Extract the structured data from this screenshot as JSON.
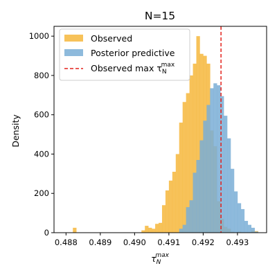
{
  "chart_data": {
    "type": "histogram",
    "title": "N=15",
    "xlabel": "τ",
    "xlabel_sub": "N",
    "xlabel_sup": "max",
    "ylabel": "Density",
    "xlim": [
      0.48765,
      0.49385
    ],
    "ylim": [
      0,
      1050
    ],
    "xticks": [
      0.488,
      0.489,
      0.49,
      0.491,
      0.492,
      0.493
    ],
    "xtick_labels": [
      "0.488",
      "0.489",
      "0.490",
      "0.491",
      "0.492",
      "0.493"
    ],
    "yticks": [
      0,
      200,
      400,
      600,
      800,
      1000
    ],
    "ytick_labels": [
      "0",
      "200",
      "400",
      "600",
      "800",
      "1000"
    ],
    "bin_width": 0.0001,
    "legend_position": "upper-left",
    "series": [
      {
        "name": "Observed",
        "color": "#f6b73c",
        "opacity": 0.85,
        "bin_start": 0.4882,
        "values": [
          25,
          0,
          0,
          0,
          0,
          0,
          0,
          0,
          0,
          0,
          0,
          0,
          0,
          0,
          0,
          0,
          0,
          0,
          0,
          0,
          12,
          35,
          25,
          20,
          45,
          50,
          140,
          215,
          265,
          310,
          400,
          560,
          665,
          710,
          800,
          860,
          1000,
          910,
          900,
          860,
          520,
          440,
          160,
          70,
          30,
          20,
          5,
          0,
          5,
          0,
          0,
          0,
          10,
          8
        ]
      },
      {
        "name": "Posterior predictive",
        "color": "#7aaed6",
        "opacity": 0.85,
        "bin_start": 0.4893,
        "values": [
          0,
          0,
          0,
          0,
          0,
          0,
          0,
          0,
          0,
          0,
          0,
          0,
          0,
          0,
          0,
          0,
          0,
          0,
          0,
          0,
          20,
          40,
          130,
          165,
          305,
          370,
          470,
          570,
          650,
          735,
          760,
          750,
          695,
          595,
          480,
          325,
          210,
          150,
          120,
          60,
          40,
          25,
          5
        ]
      }
    ],
    "reference_line": {
      "name": "Observed max τ",
      "label_sub": "N",
      "label_sup": "max",
      "x": 0.49252,
      "color": "#e3201b",
      "style": "dashed"
    }
  }
}
